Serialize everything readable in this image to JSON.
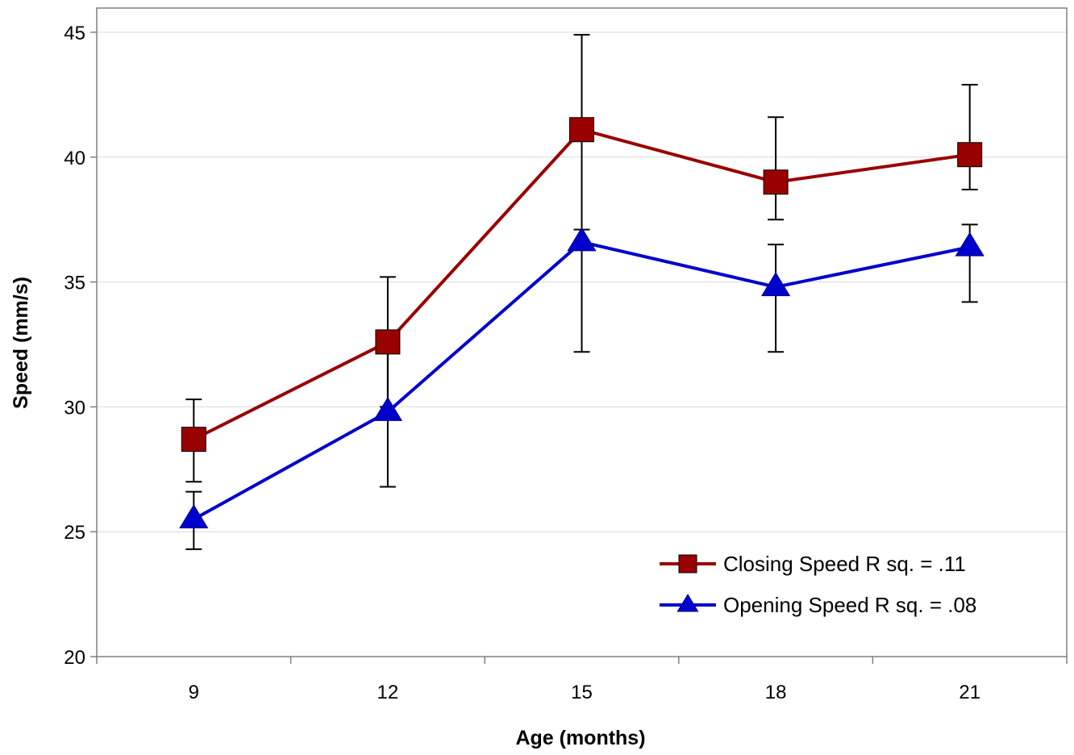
{
  "chart_data": {
    "type": "line",
    "title": "",
    "xlabel": "Age (months)",
    "ylabel": "Speed (mm/s)",
    "x": [
      9,
      12,
      15,
      18,
      21
    ],
    "x_tick_labels": [
      "9",
      "12",
      "15",
      "18",
      "21"
    ],
    "y_tick_labels": [
      "20",
      "25",
      "30",
      "35",
      "40",
      "45"
    ],
    "ylim": [
      20,
      45
    ],
    "y_ticks": [
      20,
      25,
      30,
      35,
      40,
      45
    ],
    "grid": true,
    "legend_position": "bottom-right",
    "series": [
      {
        "name": "Closing Speed R sq. = .11",
        "marker": "square",
        "color": "#990000",
        "values": [
          28.7,
          32.6,
          41.1,
          39.0,
          40.1
        ],
        "error_upper": [
          30.3,
          35.2,
          44.9,
          41.6,
          42.9
        ],
        "error_lower": [
          27.0,
          30.0,
          37.1,
          37.5,
          38.7
        ]
      },
      {
        "name": "Opening Speed R sq. = .08",
        "marker": "triangle",
        "color": "#0000cc",
        "values": [
          25.5,
          29.8,
          36.6,
          34.8,
          36.4
        ],
        "error_upper": [
          26.6,
          32.6,
          41.0,
          36.5,
          37.3
        ],
        "error_lower": [
          24.3,
          26.8,
          32.2,
          32.2,
          34.2
        ]
      }
    ]
  }
}
